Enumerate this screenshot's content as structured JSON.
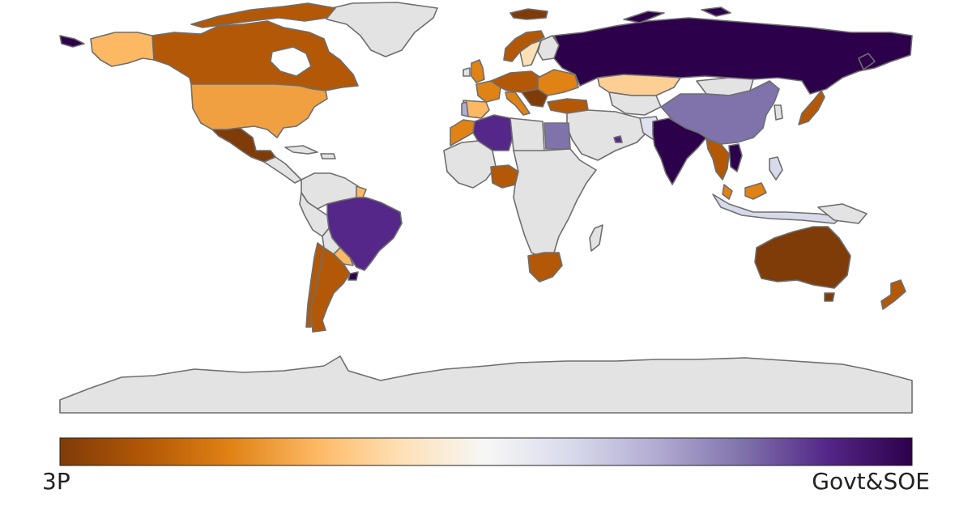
{
  "colorbar": {
    "min_label": "3P",
    "max_label": "Govt&SOE",
    "stops": [
      "#7f3b08",
      "#b35806",
      "#e08214",
      "#fdb863",
      "#fee0b6",
      "#f7f7f7",
      "#d8daeb",
      "#b2abd2",
      "#8073ac",
      "#542788",
      "#2d004b"
    ]
  },
  "legend_colors": {
    "no_data": "#e3e3e3",
    "border": "#6e6e6e"
  }
}
